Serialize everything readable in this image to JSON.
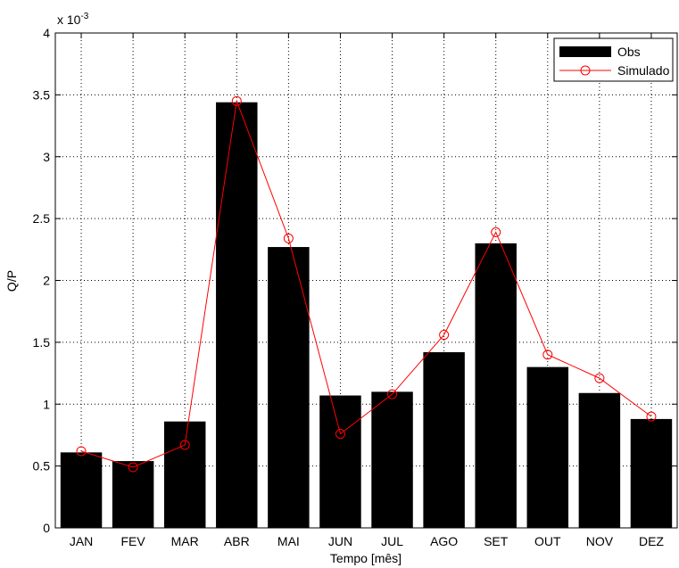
{
  "chart_data": {
    "type": "bar",
    "categories": [
      "JAN",
      "FEV",
      "MAR",
      "ABR",
      "MAI",
      "JUN",
      "JUL",
      "AGO",
      "SET",
      "OUT",
      "NOV",
      "DEZ"
    ],
    "series": [
      {
        "name": "Obs",
        "type": "bar",
        "color": "#000000",
        "values": [
          0.61,
          0.54,
          0.86,
          3.44,
          2.27,
          1.07,
          1.1,
          1.42,
          2.3,
          1.3,
          1.09,
          0.88
        ]
      },
      {
        "name": "Simulado",
        "type": "line",
        "color": "#ff0000",
        "marker": "circle",
        "values": [
          0.62,
          0.49,
          0.67,
          3.45,
          2.34,
          0.76,
          1.08,
          1.56,
          2.39,
          1.4,
          1.21,
          0.9
        ]
      }
    ],
    "title": "",
    "xlabel": "Tempo [mês]",
    "ylabel": "Q/P",
    "ylim": [
      0,
      4
    ],
    "yticks": [
      "0",
      "0.5",
      "1",
      "1.5",
      "2",
      "2.5",
      "3",
      "3.5",
      "4"
    ],
    "y_multiplier": "x 10",
    "y_exponent": "-3",
    "grid": true,
    "legend_position": "top-right"
  }
}
